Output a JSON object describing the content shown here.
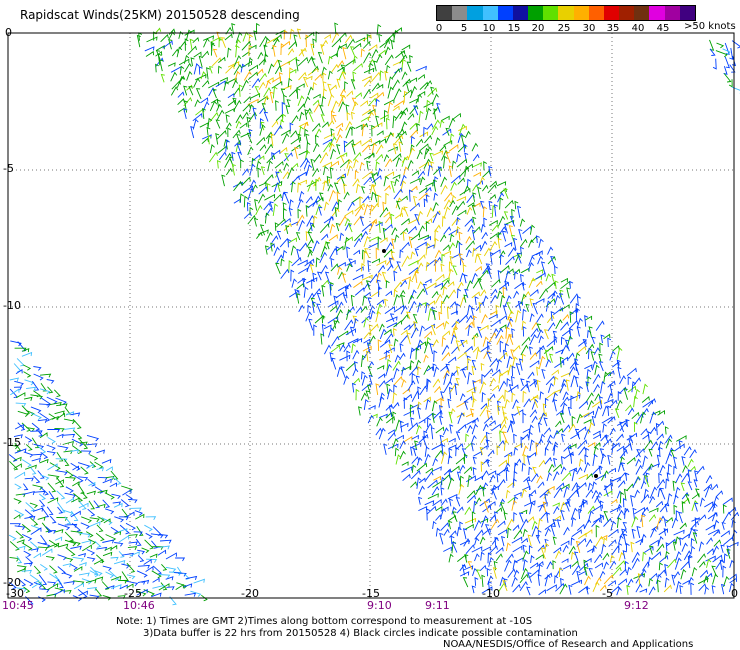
{
  "title": "Rapidscat Winds(25KM) 20150528 descending",
  "legend": {
    "colors": [
      "#404040",
      "#8c8c8c",
      "#00a0e0",
      "#40c0ff",
      "#0040ff",
      "#1010a0",
      "#00a000",
      "#60e000",
      "#e8d000",
      "#ffb000",
      "#ff6000",
      "#e00000",
      "#a02000",
      "#703010",
      "#e000e0",
      "#a000a0",
      "#400080"
    ],
    "labels": [
      "0",
      "5",
      "10",
      "15",
      "20",
      "25",
      "30",
      "35",
      "40",
      "45"
    ],
    "unit": ">50 knots"
  },
  "axes": {
    "lon_ticks": [
      "-25",
      "-20",
      "-15",
      "-10",
      "-5",
      "0"
    ],
    "lat_ticks": [
      "0",
      "-5",
      "-10",
      "-15",
      "-20"
    ],
    "corner_lon": "-30",
    "corner_lat": "-20"
  },
  "times": [
    "10:45",
    "10:46",
    "9:10",
    "9:11",
    "9:12"
  ],
  "notes": {
    "line1": "Note: 1) Times are GMT 2)Times along bottom correspond to measurement at -10S",
    "line2": "3)Data buffer is 22 hrs from 20150528 4) Black circles indicate possible contamination",
    "credit": "NOAA/NESDIS/Office of Research and Applications"
  }
}
